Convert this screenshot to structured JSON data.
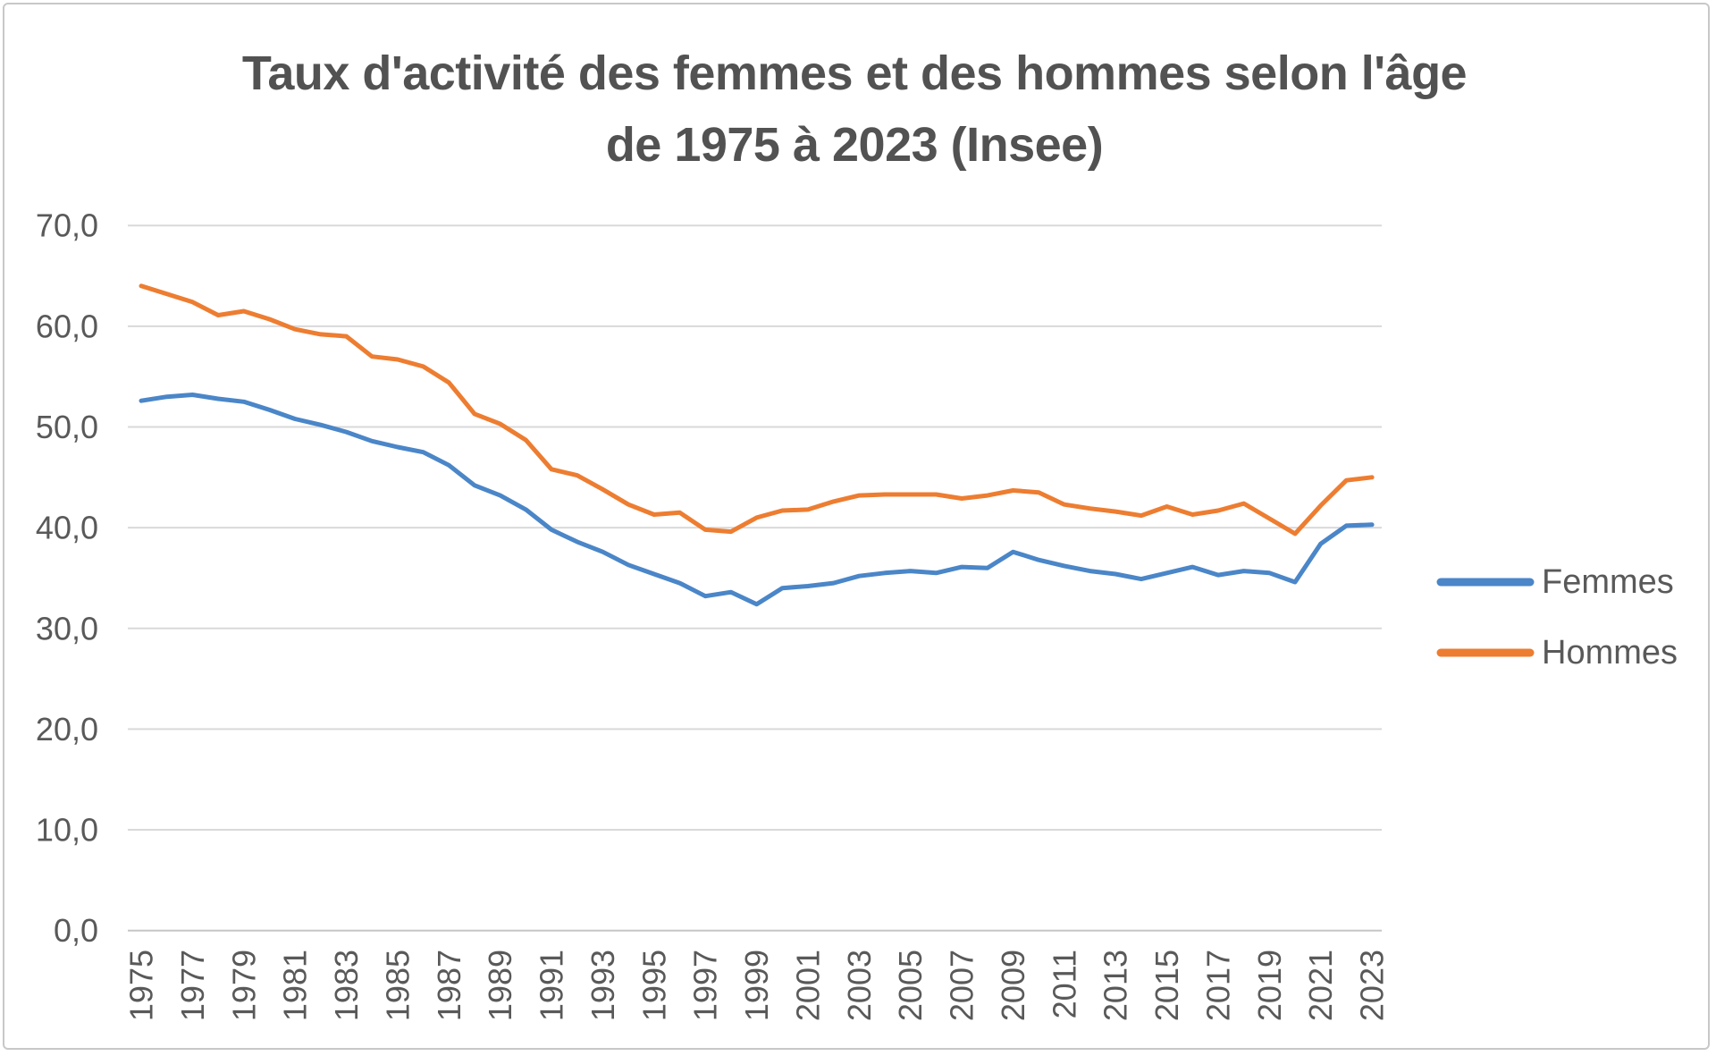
{
  "title": {
    "line1": "Taux d'activité des femmes et des hommes selon l'âge",
    "line2": "de 1975 à 2023 (Insee)"
  },
  "legend": {
    "position": "right",
    "items": [
      {
        "label": "Femmes",
        "color": "#4A86C8"
      },
      {
        "label": "Hommes",
        "color": "#ED7D31"
      }
    ]
  },
  "axes": {
    "y_tick_labels": [
      "70,0",
      "60,0",
      "50,0",
      "40,0",
      "30,0",
      "20,0",
      "10,0",
      "0,0"
    ],
    "x_tick_labels": [
      "1975",
      "1977",
      "1979",
      "1981",
      "1983",
      "1985",
      "1987",
      "1989",
      "1991",
      "1993",
      "1995",
      "1997",
      "1999",
      "2001",
      "2003",
      "2005",
      "2007",
      "2009",
      "2011",
      "2013",
      "2015",
      "2017",
      "2019",
      "2021",
      "2023"
    ]
  },
  "colors": {
    "femmes_line": "#4A86C8",
    "hommes_line": "#ED7D31",
    "gridline": "#D9D9D9",
    "axis_line": "#C6C6C6",
    "tick_text": "#595959",
    "title_text": "#525252",
    "frame_border": "#C8C8C8"
  },
  "chart_data": {
    "type": "line",
    "title": "Taux d'activité des femmes et des hommes selon l'âge de 1975 à 2023 (Insee)",
    "xlabel": "",
    "ylabel": "",
    "ylim": [
      0,
      70
    ],
    "y_tick_step": 10,
    "decimal_separator": ",",
    "grid": true,
    "legend_position": "right",
    "x": [
      1975,
      1976,
      1977,
      1978,
      1979,
      1980,
      1981,
      1982,
      1983,
      1984,
      1985,
      1986,
      1987,
      1988,
      1989,
      1990,
      1991,
      1992,
      1993,
      1994,
      1995,
      1996,
      1997,
      1998,
      1999,
      2000,
      2001,
      2002,
      2003,
      2004,
      2005,
      2006,
      2007,
      2008,
      2009,
      2010,
      2011,
      2012,
      2013,
      2014,
      2015,
      2016,
      2017,
      2018,
      2019,
      2020,
      2021,
      2022,
      2023
    ],
    "series": [
      {
        "name": "Femmes",
        "color": "#4A86C8",
        "values": [
          52.6,
          53.0,
          53.2,
          52.8,
          52.5,
          51.7,
          50.8,
          50.2,
          49.5,
          48.6,
          48.0,
          47.5,
          46.2,
          44.2,
          43.2,
          41.8,
          39.8,
          38.6,
          37.6,
          36.3,
          35.4,
          34.5,
          33.2,
          33.6,
          32.4,
          34.0,
          34.2,
          34.5,
          35.2,
          35.5,
          35.7,
          35.5,
          36.1,
          36.0,
          37.6,
          36.8,
          36.2,
          35.7,
          35.4,
          34.9,
          35.5,
          36.1,
          35.3,
          35.7,
          35.5,
          34.6,
          38.4,
          40.2,
          40.3
        ]
      },
      {
        "name": "Hommes",
        "color": "#ED7D31",
        "values": [
          64.0,
          63.2,
          62.4,
          61.1,
          61.5,
          60.7,
          59.7,
          59.2,
          59.0,
          57.0,
          56.7,
          56.0,
          54.4,
          51.3,
          50.3,
          48.7,
          45.8,
          45.2,
          43.8,
          42.3,
          41.3,
          41.5,
          39.8,
          39.6,
          41.0,
          41.7,
          41.8,
          42.6,
          43.2,
          43.3,
          43.3,
          43.3,
          42.9,
          43.2,
          43.7,
          43.5,
          42.3,
          41.9,
          41.6,
          41.2,
          42.1,
          41.3,
          41.7,
          42.4,
          40.9,
          39.4,
          42.2,
          44.7,
          45.0
        ]
      }
    ]
  }
}
